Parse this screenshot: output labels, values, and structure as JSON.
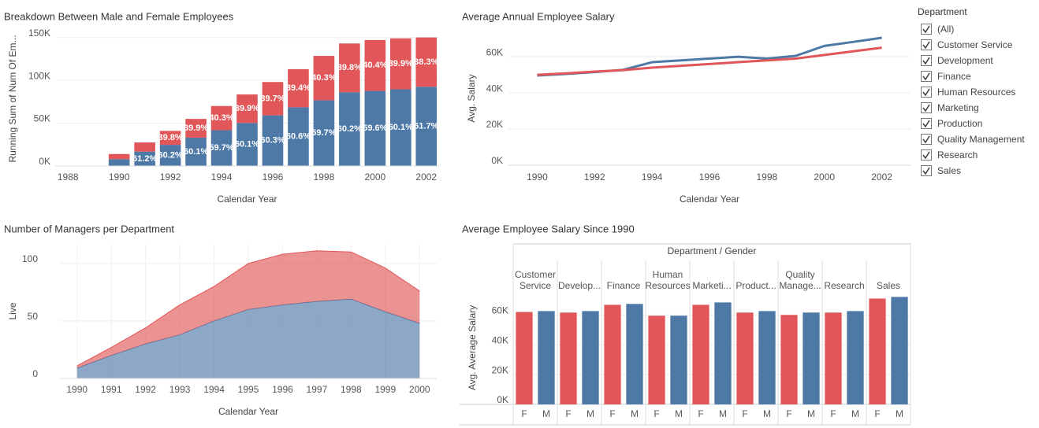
{
  "chart_data": [
    {
      "type": "bar",
      "stacked": true,
      "title": "Breakdown Between Male and Female Employees",
      "x_label": "Calendar Year",
      "y_label": "Running Sum of Num Of Em...",
      "x": [
        1990,
        1991,
        1992,
        1993,
        1994,
        1995,
        1996,
        1997,
        1998,
        1999,
        2000,
        2001,
        2002
      ],
      "xlim": [
        1987.5,
        2002.5
      ],
      "xticks": [
        1988,
        1990,
        1992,
        1994,
        1996,
        1998,
        2000,
        2002
      ],
      "ylim": [
        0,
        157000
      ],
      "yticks": [
        {
          "value": 0,
          "label": "0K"
        },
        {
          "value": 50000,
          "label": "50K"
        },
        {
          "value": 100000,
          "label": "100K"
        },
        {
          "value": 150000,
          "label": "150K"
        }
      ],
      "grid": true,
      "series": [
        {
          "color": "#4e79a7",
          "values": [
            8000,
            16800,
            24700,
            33100,
            41800,
            50200,
            59100,
            68500,
            76700,
            86100,
            87600,
            89500,
            92500
          ],
          "segment_labels": [
            null,
            "61.2%",
            "60.2%",
            "60.1%",
            "59.7%",
            "60.1%",
            "60.3%",
            "60.6%",
            "59.7%",
            "60.2%",
            "59.6%",
            "60.1%",
            "61.7%"
          ]
        },
        {
          "color": "#e15759",
          "values": [
            6000,
            10700,
            16300,
            21900,
            28200,
            33300,
            38900,
            44500,
            51800,
            56900,
            59400,
            59500,
            57500
          ],
          "segment_labels": [
            null,
            null,
            "39.8%",
            "39.9%",
            "40.3%",
            "39.9%",
            "39.7%",
            "39.4%",
            "40.3%",
            "39.8%",
            "40.4%",
            "39.9%",
            "38.3%"
          ]
        }
      ]
    },
    {
      "type": "line",
      "title": "Average Annual Employee Salary",
      "x_label": "Calendar Year",
      "y_label": "Avg. Salary",
      "x": [
        1990,
        1991,
        1992,
        1993,
        1994,
        1995,
        1996,
        1997,
        1998,
        1999,
        2000,
        2001,
        2002
      ],
      "xlim": [
        1989,
        2003
      ],
      "xticks": [
        1990,
        1992,
        1994,
        1996,
        1998,
        2000,
        2002
      ],
      "ylim": [
        0,
        74000
      ],
      "yticks": [
        {
          "value": 0,
          "label": "0K"
        },
        {
          "value": 20000,
          "label": "20K"
        },
        {
          "value": 40000,
          "label": "40K"
        },
        {
          "value": 60000,
          "label": "60K"
        }
      ],
      "grid": true,
      "series": [
        {
          "color": "#4e79a7",
          "values": [
            49600,
            50500,
            51500,
            52800,
            57000,
            58000,
            59000,
            60000,
            59000,
            60500,
            66000,
            68200,
            70500
          ]
        },
        {
          "color": "#e15759",
          "values": [
            50000,
            50800,
            51800,
            52600,
            54000,
            55000,
            56000,
            57000,
            58000,
            59000,
            61000,
            63000,
            65000
          ]
        }
      ]
    },
    {
      "type": "area",
      "stacked": true,
      "title": "Number of Managers per Department",
      "x_label": "Calendar Year",
      "y_label": "Live",
      "categories": [
        "1990",
        "1991",
        "1992",
        "1993",
        "1994",
        "1995",
        "1996",
        "1997",
        "1998",
        "1999",
        "2000"
      ],
      "ylim": [
        0,
        117
      ],
      "yticks": [
        0,
        50,
        100
      ],
      "grid": true,
      "series": [
        {
          "color": "#4e79a7",
          "values": [
            9,
            20,
            30,
            38,
            50,
            60,
            64,
            67,
            69,
            58,
            48
          ]
        },
        {
          "color": "#e15759",
          "values": [
            2,
            7,
            14,
            26,
            30,
            40,
            44,
            44,
            41,
            38,
            28
          ]
        }
      ]
    },
    {
      "type": "bar",
      "title": "Average Employee Salary Since 1990",
      "header": "Department / Gender",
      "y_label": "Avg. Average Salary",
      "categories": [
        "Customer Service",
        "Develop...",
        "Finance",
        "Human Resources",
        "Marketi...",
        "Product...",
        "Quality Manage...",
        "Research",
        "Sales"
      ],
      "ylim": [
        0,
        76000
      ],
      "yticks": [
        {
          "value": 0,
          "label": "0K"
        },
        {
          "value": 20000,
          "label": "20K"
        },
        {
          "value": 40000,
          "label": "40K"
        },
        {
          "value": 60000,
          "label": "60K"
        }
      ],
      "grid": true,
      "series": [
        {
          "name": "F",
          "color": "#e15759",
          "values": [
            62000,
            61600,
            66800,
            59500,
            66800,
            61600,
            60000,
            61600,
            71000
          ]
        },
        {
          "name": "M",
          "color": "#4e79a7",
          "values": [
            62600,
            62600,
            67400,
            59500,
            68400,
            62600,
            61600,
            62600,
            72100
          ]
        }
      ]
    }
  ],
  "filter": {
    "title": "Department",
    "items": [
      {
        "label": "(All)",
        "checked": true
      },
      {
        "label": "Customer Service",
        "checked": true
      },
      {
        "label": "Development",
        "checked": true
      },
      {
        "label": "Finance",
        "checked": true
      },
      {
        "label": "Human Resources",
        "checked": true
      },
      {
        "label": "Marketing",
        "checked": true
      },
      {
        "label": "Production",
        "checked": true
      },
      {
        "label": "Quality Management",
        "checked": true
      },
      {
        "label": "Research",
        "checked": true
      },
      {
        "label": "Sales",
        "checked": true
      }
    ]
  }
}
